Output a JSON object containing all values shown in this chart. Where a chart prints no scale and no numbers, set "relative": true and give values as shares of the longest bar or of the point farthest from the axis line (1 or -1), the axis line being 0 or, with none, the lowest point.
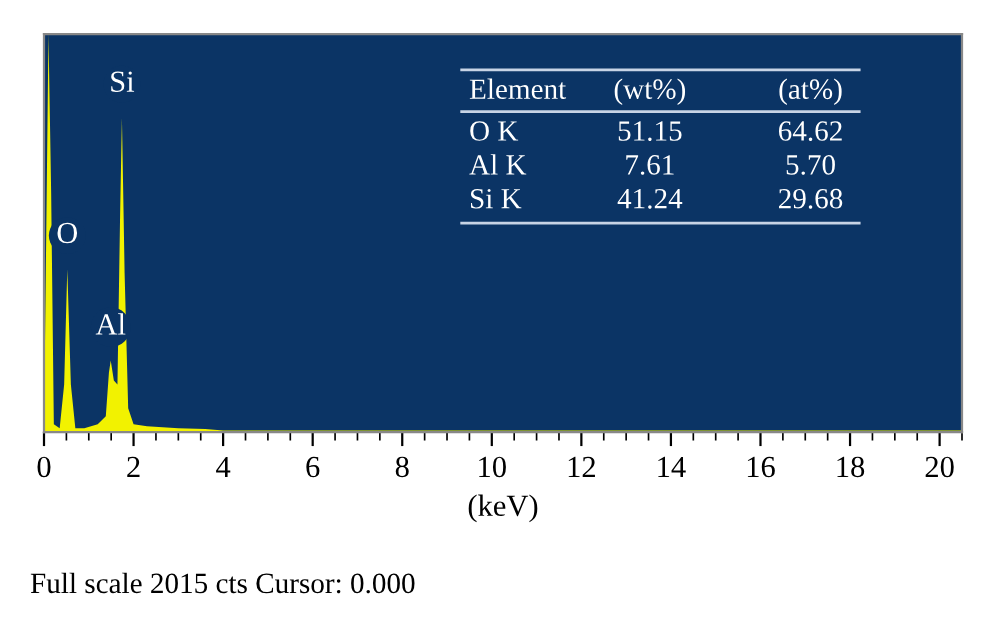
{
  "chart_data": {
    "type": "area",
    "relative": true,
    "xlabel": "(keV)",
    "tick_labels": "x",
    "xlim": [
      0,
      20.5
    ],
    "xticks": [
      0,
      2,
      4,
      6,
      8,
      10,
      12,
      14,
      16,
      18,
      20
    ],
    "grid": false,
    "series": [
      {
        "color": "#f2f200",
        "x": [
          0,
          0.06,
          0.1,
          0.16,
          0.22,
          0.35,
          0.45,
          0.52,
          0.6,
          0.7,
          0.9,
          1.2,
          1.38,
          1.45,
          1.49,
          1.56,
          1.64,
          1.7,
          1.74,
          1.8,
          1.88,
          2.0,
          2.3,
          3.0,
          3.6,
          4.0,
          20.5
        ],
        "values": [
          0,
          0.6,
          1,
          0.6,
          0.02,
          0.01,
          0.12,
          0.41,
          0.12,
          0.01,
          0.01,
          0.02,
          0.04,
          0.15,
          0.18,
          0.13,
          0.12,
          0.55,
          0.79,
          0.4,
          0.06,
          0.02,
          0.015,
          0.01,
          0.008,
          0.004,
          0.004
        ]
      }
    ],
    "annotations": [
      {
        "text": "O",
        "x": 0.52,
        "y": 0.41
      },
      {
        "text": "Al",
        "x": 1.49,
        "y": 0.18
      },
      {
        "text": "Si",
        "x": 1.74,
        "y": 0.79
      },
      "Element",
      "(wt%)",
      "(at%)",
      "O K",
      "51.15",
      "64.62",
      "Al K",
      "7.61",
      "5.70",
      "Si K",
      "41.24",
      "29.68",
      "Full scale 2015 cts Cursor: 0.000"
    ]
  }
}
